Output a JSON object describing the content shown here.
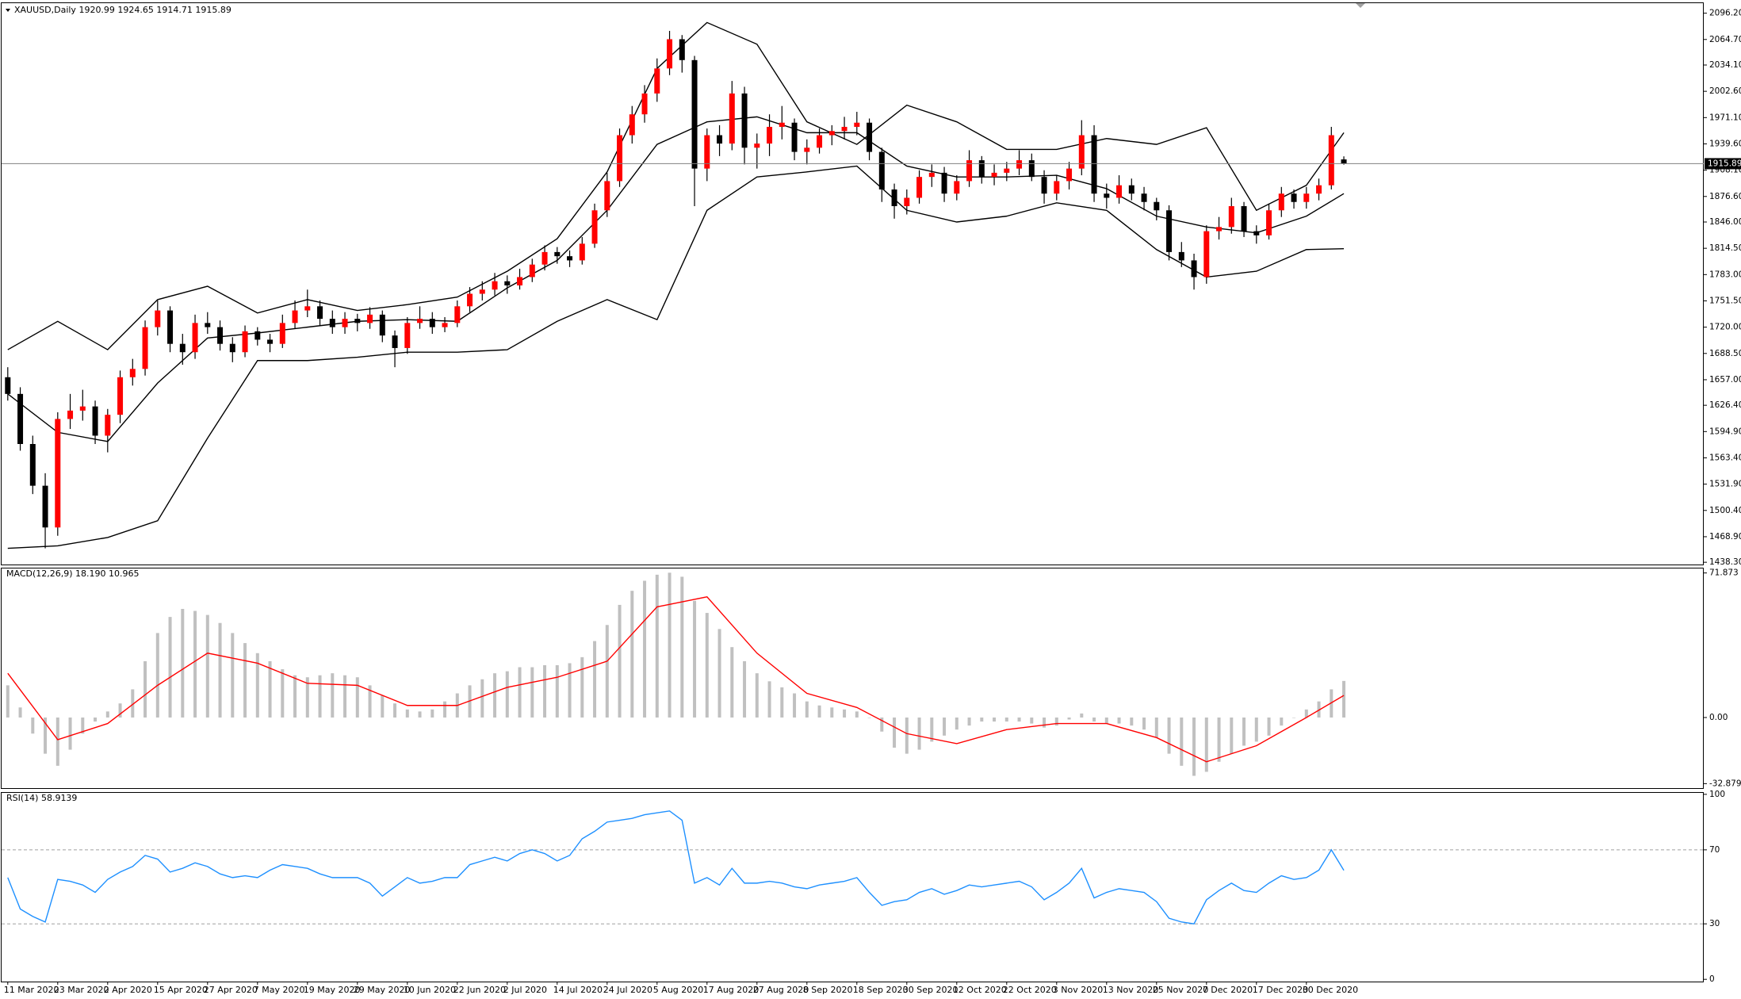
{
  "chart_data": [
    {
      "type": "candlestick",
      "title": "XAUUSD,Daily  1920.99 1924.65 1914.71 1915.89",
      "up_color": "#ff0000",
      "down_color": "#000000",
      "price_line_color": "#808080",
      "categories": [
        "11 Mar 2020",
        null,
        null,
        null,
        "23 Mar 2020",
        null,
        null,
        null,
        "2 Apr 2020",
        null,
        null,
        null,
        "15 Apr 2020",
        null,
        null,
        null,
        "27 Apr 2020",
        null,
        null,
        null,
        "7 May 2020",
        null,
        null,
        null,
        "19 May 2020",
        null,
        null,
        null,
        "29 May 2020",
        null,
        null,
        null,
        "10 Jun 2020",
        null,
        null,
        null,
        "22 Jun 2020",
        null,
        null,
        null,
        "2 Jul 2020",
        null,
        null,
        null,
        "14 Jul 2020",
        null,
        null,
        null,
        "24 Jul 2020",
        null,
        null,
        null,
        "5 Aug 2020",
        null,
        null,
        null,
        "17 Aug 2020",
        null,
        null,
        null,
        "27 Aug 2020",
        null,
        null,
        null,
        "8 Sep 2020",
        null,
        null,
        null,
        "18 Sep 2020",
        null,
        null,
        null,
        "30 Sep 2020",
        null,
        null,
        null,
        "12 Oct 2020",
        null,
        null,
        null,
        "22 Oct 2020",
        null,
        null,
        null,
        "3 Nov 2020",
        null,
        null,
        null,
        "13 Nov 2020",
        null,
        null,
        null,
        "25 Nov 2020",
        null,
        null,
        null,
        "7 Dec 2020",
        null,
        null,
        null,
        "17 Dec 2020",
        null,
        null,
        null,
        "30 Dec 2020",
        null,
        null,
        null
      ],
      "candles": [
        [
          1660,
          1672,
          1632,
          1640
        ],
        [
          1640,
          1648,
          1572,
          1580
        ],
        [
          1580,
          1590,
          1520,
          1530
        ],
        [
          1530,
          1545,
          1455,
          1480
        ],
        [
          1480,
          1618,
          1470,
          1610
        ],
        [
          1610,
          1640,
          1598,
          1620
        ],
        [
          1620,
          1645,
          1608,
          1625
        ],
        [
          1625,
          1632,
          1580,
          1590
        ],
        [
          1590,
          1622,
          1570,
          1615
        ],
        [
          1615,
          1668,
          1605,
          1660
        ],
        [
          1660,
          1682,
          1650,
          1670
        ],
        [
          1670,
          1728,
          1662,
          1720
        ],
        [
          1720,
          1752,
          1710,
          1740
        ],
        [
          1740,
          1745,
          1690,
          1700
        ],
        [
          1700,
          1712,
          1675,
          1690
        ],
        [
          1690,
          1735,
          1682,
          1725
        ],
        [
          1725,
          1738,
          1712,
          1720
        ],
        [
          1720,
          1728,
          1692,
          1700
        ],
        [
          1700,
          1708,
          1678,
          1690
        ],
        [
          1690,
          1722,
          1684,
          1715
        ],
        [
          1715,
          1720,
          1698,
          1705
        ],
        [
          1705,
          1712,
          1690,
          1700
        ],
        [
          1700,
          1735,
          1695,
          1725
        ],
        [
          1725,
          1752,
          1718,
          1740
        ],
        [
          1740,
          1765,
          1732,
          1745
        ],
        [
          1745,
          1752,
          1722,
          1730
        ],
        [
          1730,
          1740,
          1712,
          1720
        ],
        [
          1720,
          1738,
          1712,
          1730
        ],
        [
          1730,
          1736,
          1715,
          1725
        ],
        [
          1725,
          1744,
          1718,
          1735
        ],
        [
          1735,
          1740,
          1702,
          1710
        ],
        [
          1710,
          1716,
          1672,
          1695
        ],
        [
          1695,
          1732,
          1688,
          1725
        ],
        [
          1725,
          1745,
          1718,
          1730
        ],
        [
          1730,
          1738,
          1712,
          1720
        ],
        [
          1720,
          1732,
          1714,
          1725
        ],
        [
          1725,
          1752,
          1720,
          1745
        ],
        [
          1745,
          1768,
          1738,
          1760
        ],
        [
          1760,
          1775,
          1752,
          1765
        ],
        [
          1765,
          1785,
          1758,
          1775
        ],
        [
          1775,
          1782,
          1760,
          1770
        ],
        [
          1770,
          1790,
          1765,
          1780
        ],
        [
          1780,
          1802,
          1774,
          1795
        ],
        [
          1795,
          1818,
          1788,
          1810
        ],
        [
          1810,
          1816,
          1796,
          1805
        ],
        [
          1805,
          1812,
          1792,
          1800
        ],
        [
          1800,
          1828,
          1795,
          1820
        ],
        [
          1820,
          1868,
          1815,
          1860
        ],
        [
          1860,
          1905,
          1852,
          1895
        ],
        [
          1895,
          1958,
          1888,
          1950
        ],
        [
          1950,
          1985,
          1940,
          1975
        ],
        [
          1975,
          2010,
          1965,
          2000
        ],
        [
          2000,
          2042,
          1990,
          2030
        ],
        [
          2030,
          2075,
          2022,
          2065
        ],
        [
          2065,
          2070,
          2025,
          2040
        ],
        [
          2040,
          2045,
          1865,
          1910
        ],
        [
          1910,
          1958,
          1895,
          1950
        ],
        [
          1950,
          1962,
          1925,
          1940
        ],
        [
          1940,
          2015,
          1932,
          2000
        ],
        [
          2000,
          2008,
          1915,
          1935
        ],
        [
          1935,
          1952,
          1910,
          1940
        ],
        [
          1940,
          1975,
          1925,
          1960
        ],
        [
          1960,
          1985,
          1945,
          1965
        ],
        [
          1965,
          1970,
          1920,
          1930
        ],
        [
          1930,
          1945,
          1915,
          1935
        ],
        [
          1935,
          1958,
          1928,
          1950
        ],
        [
          1950,
          1962,
          1938,
          1955
        ],
        [
          1955,
          1972,
          1945,
          1960
        ],
        [
          1960,
          1978,
          1950,
          1965
        ],
        [
          1965,
          1970,
          1920,
          1930
        ],
        [
          1930,
          1935,
          1870,
          1885
        ],
        [
          1885,
          1892,
          1850,
          1865
        ],
        [
          1865,
          1885,
          1855,
          1875
        ],
        [
          1875,
          1908,
          1868,
          1900
        ],
        [
          1900,
          1915,
          1888,
          1905
        ],
        [
          1905,
          1912,
          1870,
          1880
        ],
        [
          1880,
          1902,
          1872,
          1895
        ],
        [
          1895,
          1932,
          1888,
          1920
        ],
        [
          1920,
          1925,
          1892,
          1900
        ],
        [
          1900,
          1915,
          1890,
          1905
        ],
        [
          1905,
          1918,
          1895,
          1910
        ],
        [
          1910,
          1932,
          1902,
          1920
        ],
        [
          1920,
          1928,
          1895,
          1900
        ],
        [
          1900,
          1908,
          1868,
          1880
        ],
        [
          1880,
          1902,
          1872,
          1895
        ],
        [
          1895,
          1918,
          1885,
          1910
        ],
        [
          1910,
          1968,
          1902,
          1950
        ],
        [
          1950,
          1962,
          1870,
          1880
        ],
        [
          1880,
          1892,
          1862,
          1875
        ],
        [
          1875,
          1902,
          1868,
          1890
        ],
        [
          1890,
          1898,
          1872,
          1880
        ],
        [
          1880,
          1888,
          1860,
          1870
        ],
        [
          1870,
          1875,
          1848,
          1860
        ],
        [
          1860,
          1866,
          1800,
          1810
        ],
        [
          1810,
          1822,
          1792,
          1800
        ],
        [
          1800,
          1808,
          1765,
          1780
        ],
        [
          1780,
          1842,
          1772,
          1835
        ],
        [
          1835,
          1852,
          1825,
          1840
        ],
        [
          1840,
          1875,
          1832,
          1865
        ],
        [
          1865,
          1870,
          1828,
          1835
        ],
        [
          1835,
          1842,
          1820,
          1830
        ],
        [
          1830,
          1868,
          1825,
          1860
        ],
        [
          1860,
          1888,
          1852,
          1880
        ],
        [
          1880,
          1885,
          1862,
          1870
        ],
        [
          1870,
          1888,
          1862,
          1880
        ],
        [
          1880,
          1898,
          1872,
          1890
        ],
        [
          1890,
          1960,
          1885,
          1950
        ],
        [
          1920.99,
          1924.65,
          1914.71,
          1915.89
        ]
      ],
      "bands": {
        "color": "#000000",
        "x": [
          0,
          4,
          8,
          12,
          16,
          20,
          24,
          28,
          32,
          36,
          40,
          44,
          48,
          52,
          56,
          60,
          64,
          68,
          72,
          76,
          80,
          84,
          88,
          92,
          96,
          100,
          104,
          107
        ],
        "upper": [
          1693,
          1727,
          1693,
          1753,
          1769,
          1737,
          1753,
          1740,
          1747,
          1756,
          1787,
          1826,
          1906,
          2030,
          2085,
          2059,
          1966,
          1939,
          1986,
          1966,
          1933,
          1933,
          1946,
          1939,
          1959,
          1860,
          1890,
          1953
        ],
        "middle": [
          1640,
          1594,
          1583,
          1653,
          1707,
          1713,
          1720,
          1727,
          1729,
          1727,
          1767,
          1800,
          1860,
          1939,
          1966,
          1972,
          1953,
          1953,
          1913,
          1900,
          1900,
          1902,
          1886,
          1853,
          1840,
          1833,
          1853,
          1880
        ],
        "lower": [
          1455,
          1458,
          1468,
          1488,
          1587,
          1680,
          1680,
          1684,
          1690,
          1690,
          1693,
          1727,
          1753,
          1729,
          1860,
          1900,
          1906,
          1913,
          1860,
          1846,
          1853,
          1869,
          1860,
          1813,
          1780,
          1787,
          1813,
          1814
        ]
      },
      "ylim": [
        1435.6,
        2108.2
      ],
      "yticks": [
        {
          "value": 2096.2,
          "label": "2096.20"
        },
        {
          "value": 2064.7,
          "label": "2064.70"
        },
        {
          "value": 2034.1,
          "label": "2034.10"
        },
        {
          "value": 2002.6,
          "label": "2002.60"
        },
        {
          "value": 1971.1,
          "label": "1971.10"
        },
        {
          "value": 1939.6,
          "label": "1939.60"
        },
        {
          "value": 1908.1,
          "label": "1908.10"
        },
        {
          "value": 1876.6,
          "label": "1876.60"
        },
        {
          "value": 1846,
          "label": "1846.00"
        },
        {
          "value": 1814.5,
          "label": "1814.50"
        },
        {
          "value": 1783,
          "label": "1783.00"
        },
        {
          "value": 1751.5,
          "label": "1751.50"
        },
        {
          "value": 1720,
          "label": "1720.00"
        },
        {
          "value": 1688.5,
          "label": "1688.50"
        },
        {
          "value": 1657,
          "label": "1657.00"
        },
        {
          "value": 1626.4,
          "label": "1626.40"
        },
        {
          "value": 1594.9,
          "label": "1594.90"
        },
        {
          "value": 1563.4,
          "label": "1563.40"
        },
        {
          "value": 1531.9,
          "label": "1531.90"
        },
        {
          "value": 1500.4,
          "label": "1500.40"
        },
        {
          "value": 1468.9,
          "label": "1468.90"
        },
        {
          "value": 1438.3,
          "label": "1438.30"
        }
      ]
    },
    {
      "type": "macd",
      "title": "MACD(12,26,9) 18.190 10.965",
      "histogram": {
        "color": "#c0c0c0",
        "values": [
          16,
          5,
          -8,
          -18,
          -24,
          -16,
          -8,
          -2,
          3,
          7,
          14,
          28,
          42,
          50,
          54,
          53,
          51,
          47,
          42,
          37,
          32,
          28,
          24,
          21,
          20,
          21,
          22,
          21,
          20,
          16,
          11,
          7,
          4,
          3,
          4,
          8,
          12,
          16,
          19,
          22,
          23,
          25,
          25,
          26,
          26,
          27,
          30,
          38,
          46,
          56,
          63,
          68,
          71,
          72,
          70,
          58,
          52,
          44,
          35,
          28,
          22,
          18,
          15,
          12,
          8,
          6,
          5,
          4,
          3,
          0,
          -7,
          -15,
          -18,
          -16,
          -12,
          -9,
          -6,
          -4,
          -2,
          -2,
          -2,
          -2,
          -3,
          -5,
          -4,
          -1,
          2,
          -2,
          -3,
          -3,
          -4,
          -6,
          -10,
          -18,
          -24,
          -29,
          -27,
          -22,
          -18,
          -14,
          -12,
          -9,
          -4,
          0,
          4,
          8,
          14,
          18.19
        ]
      },
      "signal": {
        "color": "#ff0000",
        "x": [
          0,
          4,
          8,
          12,
          16,
          20,
          24,
          28,
          32,
          36,
          40,
          44,
          48,
          52,
          56,
          60,
          64,
          68,
          72,
          76,
          80,
          84,
          88,
          92,
          96,
          100,
          104,
          107
        ],
        "values": [
          22,
          -11,
          -3,
          16,
          32,
          27,
          17,
          16,
          6,
          6,
          15,
          20,
          28,
          55,
          60,
          32,
          12,
          5,
          -8,
          -13,
          -6,
          -3,
          -3,
          -10,
          -22,
          -14,
          0,
          10.965
        ]
      },
      "ylim": [
        -35.1,
        74.1
      ],
      "yticks": [
        71.873,
        {
          "value": 0,
          "label": "0.00"
        },
        -32.879
      ]
    },
    {
      "type": "line",
      "title": "RSI(14) 58.9139",
      "color": "#1e90ff",
      "level_color": "#a0a0a0",
      "values": [
        55,
        38,
        34,
        31,
        54,
        53,
        51,
        47,
        54,
        58,
        61,
        67,
        65,
        58,
        60,
        63,
        61,
        57,
        55,
        56,
        55,
        59,
        62,
        61,
        60,
        57,
        55,
        55,
        55,
        52,
        45,
        50,
        55,
        52,
        53,
        55,
        55,
        62,
        64,
        66,
        64,
        68,
        70,
        68,
        64,
        67,
        76,
        80,
        85,
        86,
        87,
        89,
        90,
        91,
        86,
        52,
        55,
        51,
        60,
        52,
        52,
        53,
        52,
        50,
        49,
        51,
        52,
        53,
        55,
        47,
        40,
        42,
        43,
        47,
        49,
        46,
        48,
        51,
        50,
        51,
        52,
        53,
        50,
        43,
        47,
        52,
        60,
        44,
        47,
        49,
        48,
        47,
        42,
        33,
        31,
        30,
        43,
        48,
        52,
        48,
        47,
        52,
        56,
        54,
        55,
        59,
        70,
        58.9139
      ],
      "levels": [
        70,
        30
      ],
      "ylim": [
        -1.2,
        100.8
      ],
      "yticks": [
        100,
        70,
        30,
        0
      ]
    }
  ]
}
